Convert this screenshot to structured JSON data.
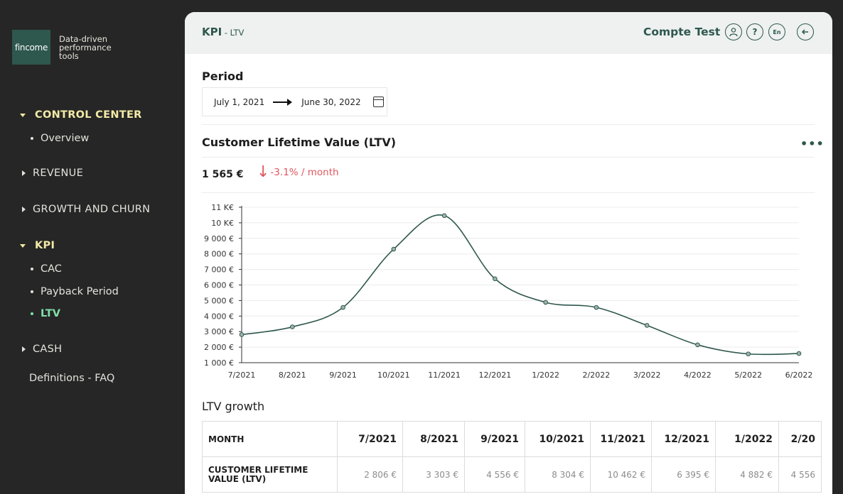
{
  "sidebar": {
    "logo": "fincome",
    "tagline": "Data-driven performance tools",
    "sections": {
      "control_center": "CONTROL CENTER",
      "overview": "Overview",
      "revenue": "REVENUE",
      "growth": "GROWTH AND CHURN",
      "kpi": "KPI",
      "cac": "CAC",
      "payback": "Payback Period",
      "ltv": "LTV",
      "cash": "CASH",
      "faq": "Definitions - FAQ"
    }
  },
  "header": {
    "breadcrumb_main": "KPI",
    "breadcrumb_sep": " - ",
    "breadcrumb_sub": "LTV",
    "account": "Compte Test",
    "lang": "En"
  },
  "period": {
    "title": "Period",
    "start": "July 1, 2021",
    "end": "June 30, 2022"
  },
  "card": {
    "title": "Customer Lifetime Value (LTV)",
    "more": "•••",
    "value": "1 565 €",
    "change": "-3.1% / month"
  },
  "chart_data": {
    "type": "line",
    "categories": [
      "7/2021",
      "8/2021",
      "9/2021",
      "10/2021",
      "11/2021",
      "12/2021",
      "1/2022",
      "2/2022",
      "3/2022",
      "4/2022",
      "5/2022",
      "6/2022"
    ],
    "values": [
      2806,
      3303,
      4556,
      8304,
      10462,
      6395,
      4882,
      4556,
      3400,
      2150,
      1565,
      1590
    ],
    "ylim": [
      1000,
      11000
    ],
    "yticks": [
      "1 000 €",
      "2 000 €",
      "3 000 €",
      "4 000 €",
      "5 000 €",
      "6 000 €",
      "7 000 €",
      "8 000 €",
      "9 000 €",
      "10 K€",
      "11 K€"
    ],
    "grid": true,
    "color": "#2e574d"
  },
  "growth": {
    "title": "LTV growth",
    "header_label": "MONTH",
    "row_label": "CUSTOMER LIFETIME VALUE (LTV)",
    "months": [
      "7/2021",
      "8/2021",
      "9/2021",
      "10/2021",
      "11/2021",
      "12/2021",
      "1/2022",
      "2/20"
    ],
    "values": [
      "2 806 €",
      "3 303 €",
      "4 556 €",
      "8 304 €",
      "10 462 €",
      "6 395 €",
      "4 882 €",
      "4 556"
    ]
  }
}
